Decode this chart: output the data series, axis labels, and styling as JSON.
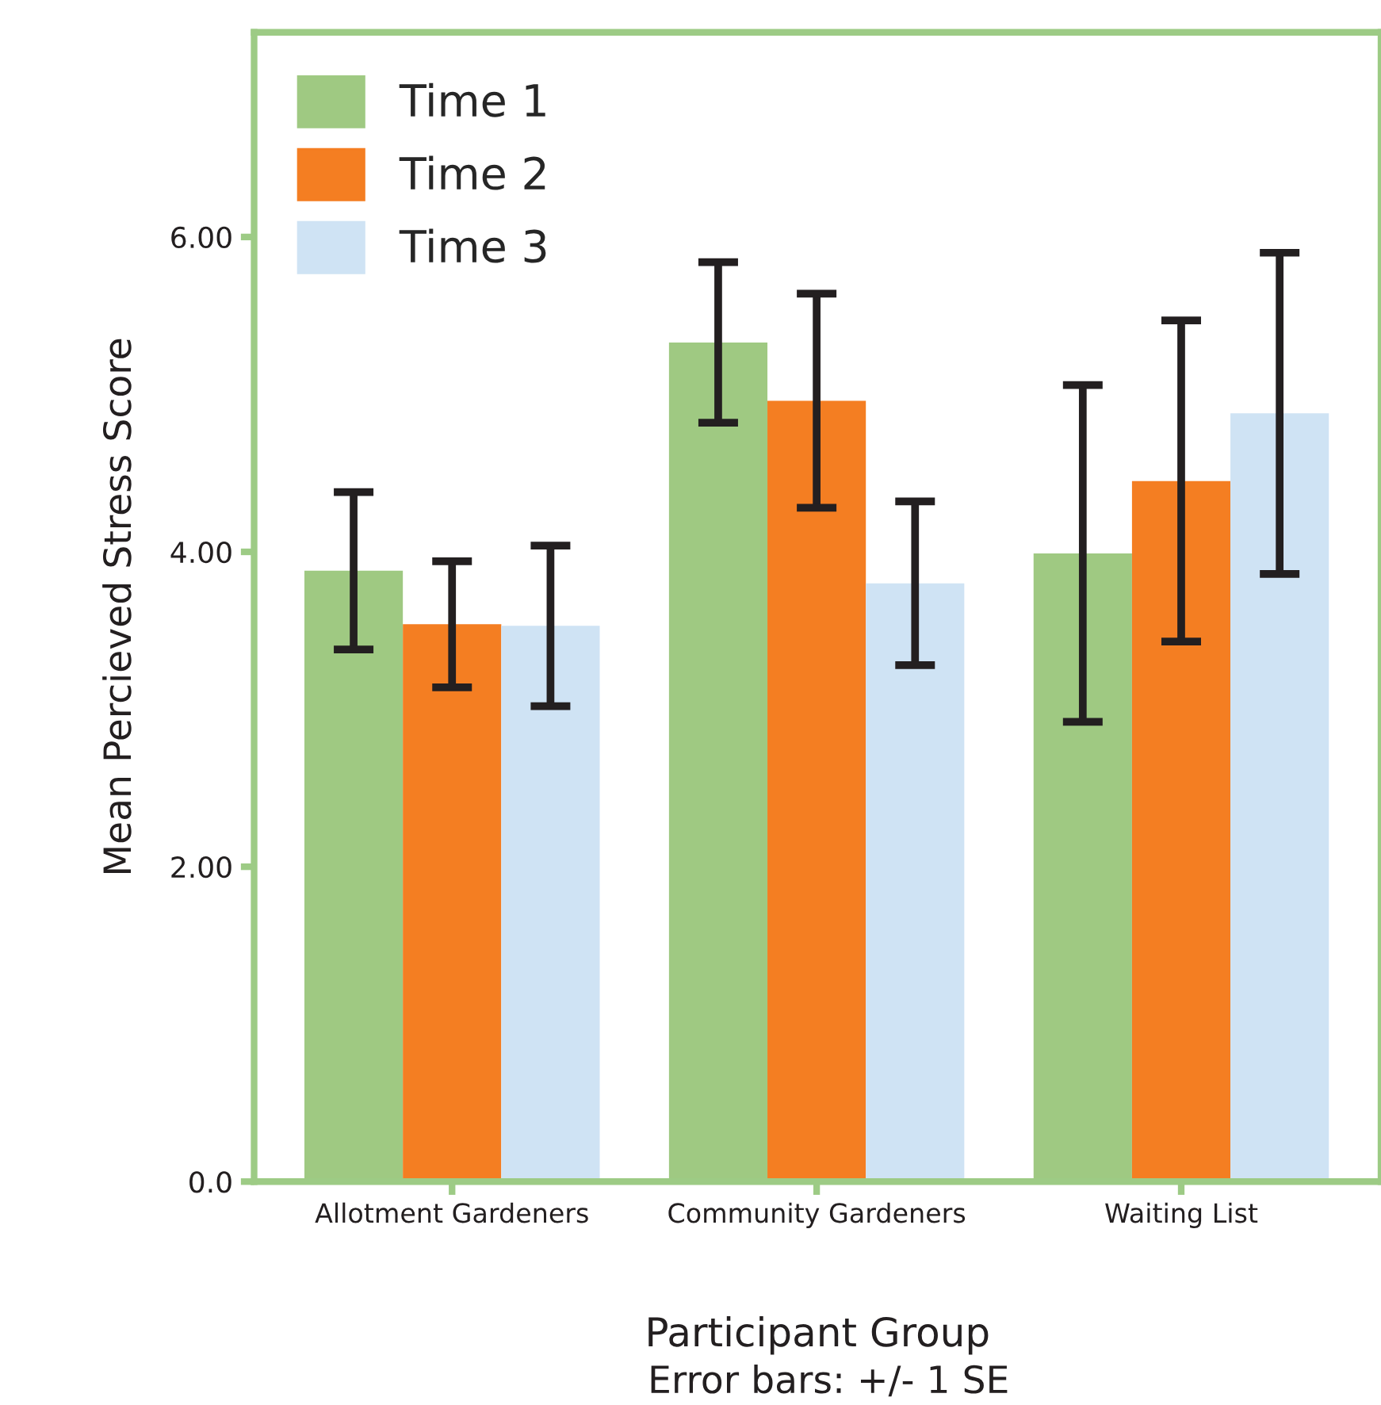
{
  "chart_data": {
    "type": "bar",
    "xlabel": "Participant Group",
    "ylabel": "Mean Percieved Stress Score",
    "categories": [
      "Allotment Gardeners",
      "Community Gardeners",
      "Waiting List"
    ],
    "series": [
      {
        "name": "Time 1",
        "color": "#9fc982",
        "values": [
          3.88,
          5.33,
          3.99
        ],
        "errors": [
          0.5,
          0.51,
          1.07
        ]
      },
      {
        "name": "Time 2",
        "color": "#f47e22",
        "values": [
          3.54,
          4.96,
          4.45
        ],
        "errors": [
          0.4,
          0.68,
          1.02
        ]
      },
      {
        "name": "Time 3",
        "color": "#cfe3f4",
        "values": [
          3.53,
          3.8,
          4.88
        ],
        "errors": [
          0.51,
          0.52,
          1.02
        ]
      }
    ],
    "ylim": [
      0,
      7.3
    ],
    "yticks": [
      {
        "value": 0,
        "label": "0.0"
      },
      {
        "value": 2,
        "label": "2.00"
      },
      {
        "value": 4,
        "label": "4.00"
      },
      {
        "value": 6,
        "label": "6.00"
      }
    ],
    "grid": false,
    "legend": "top left",
    "annotations": [
      "Error bars: +/- 1 SE"
    ]
  }
}
